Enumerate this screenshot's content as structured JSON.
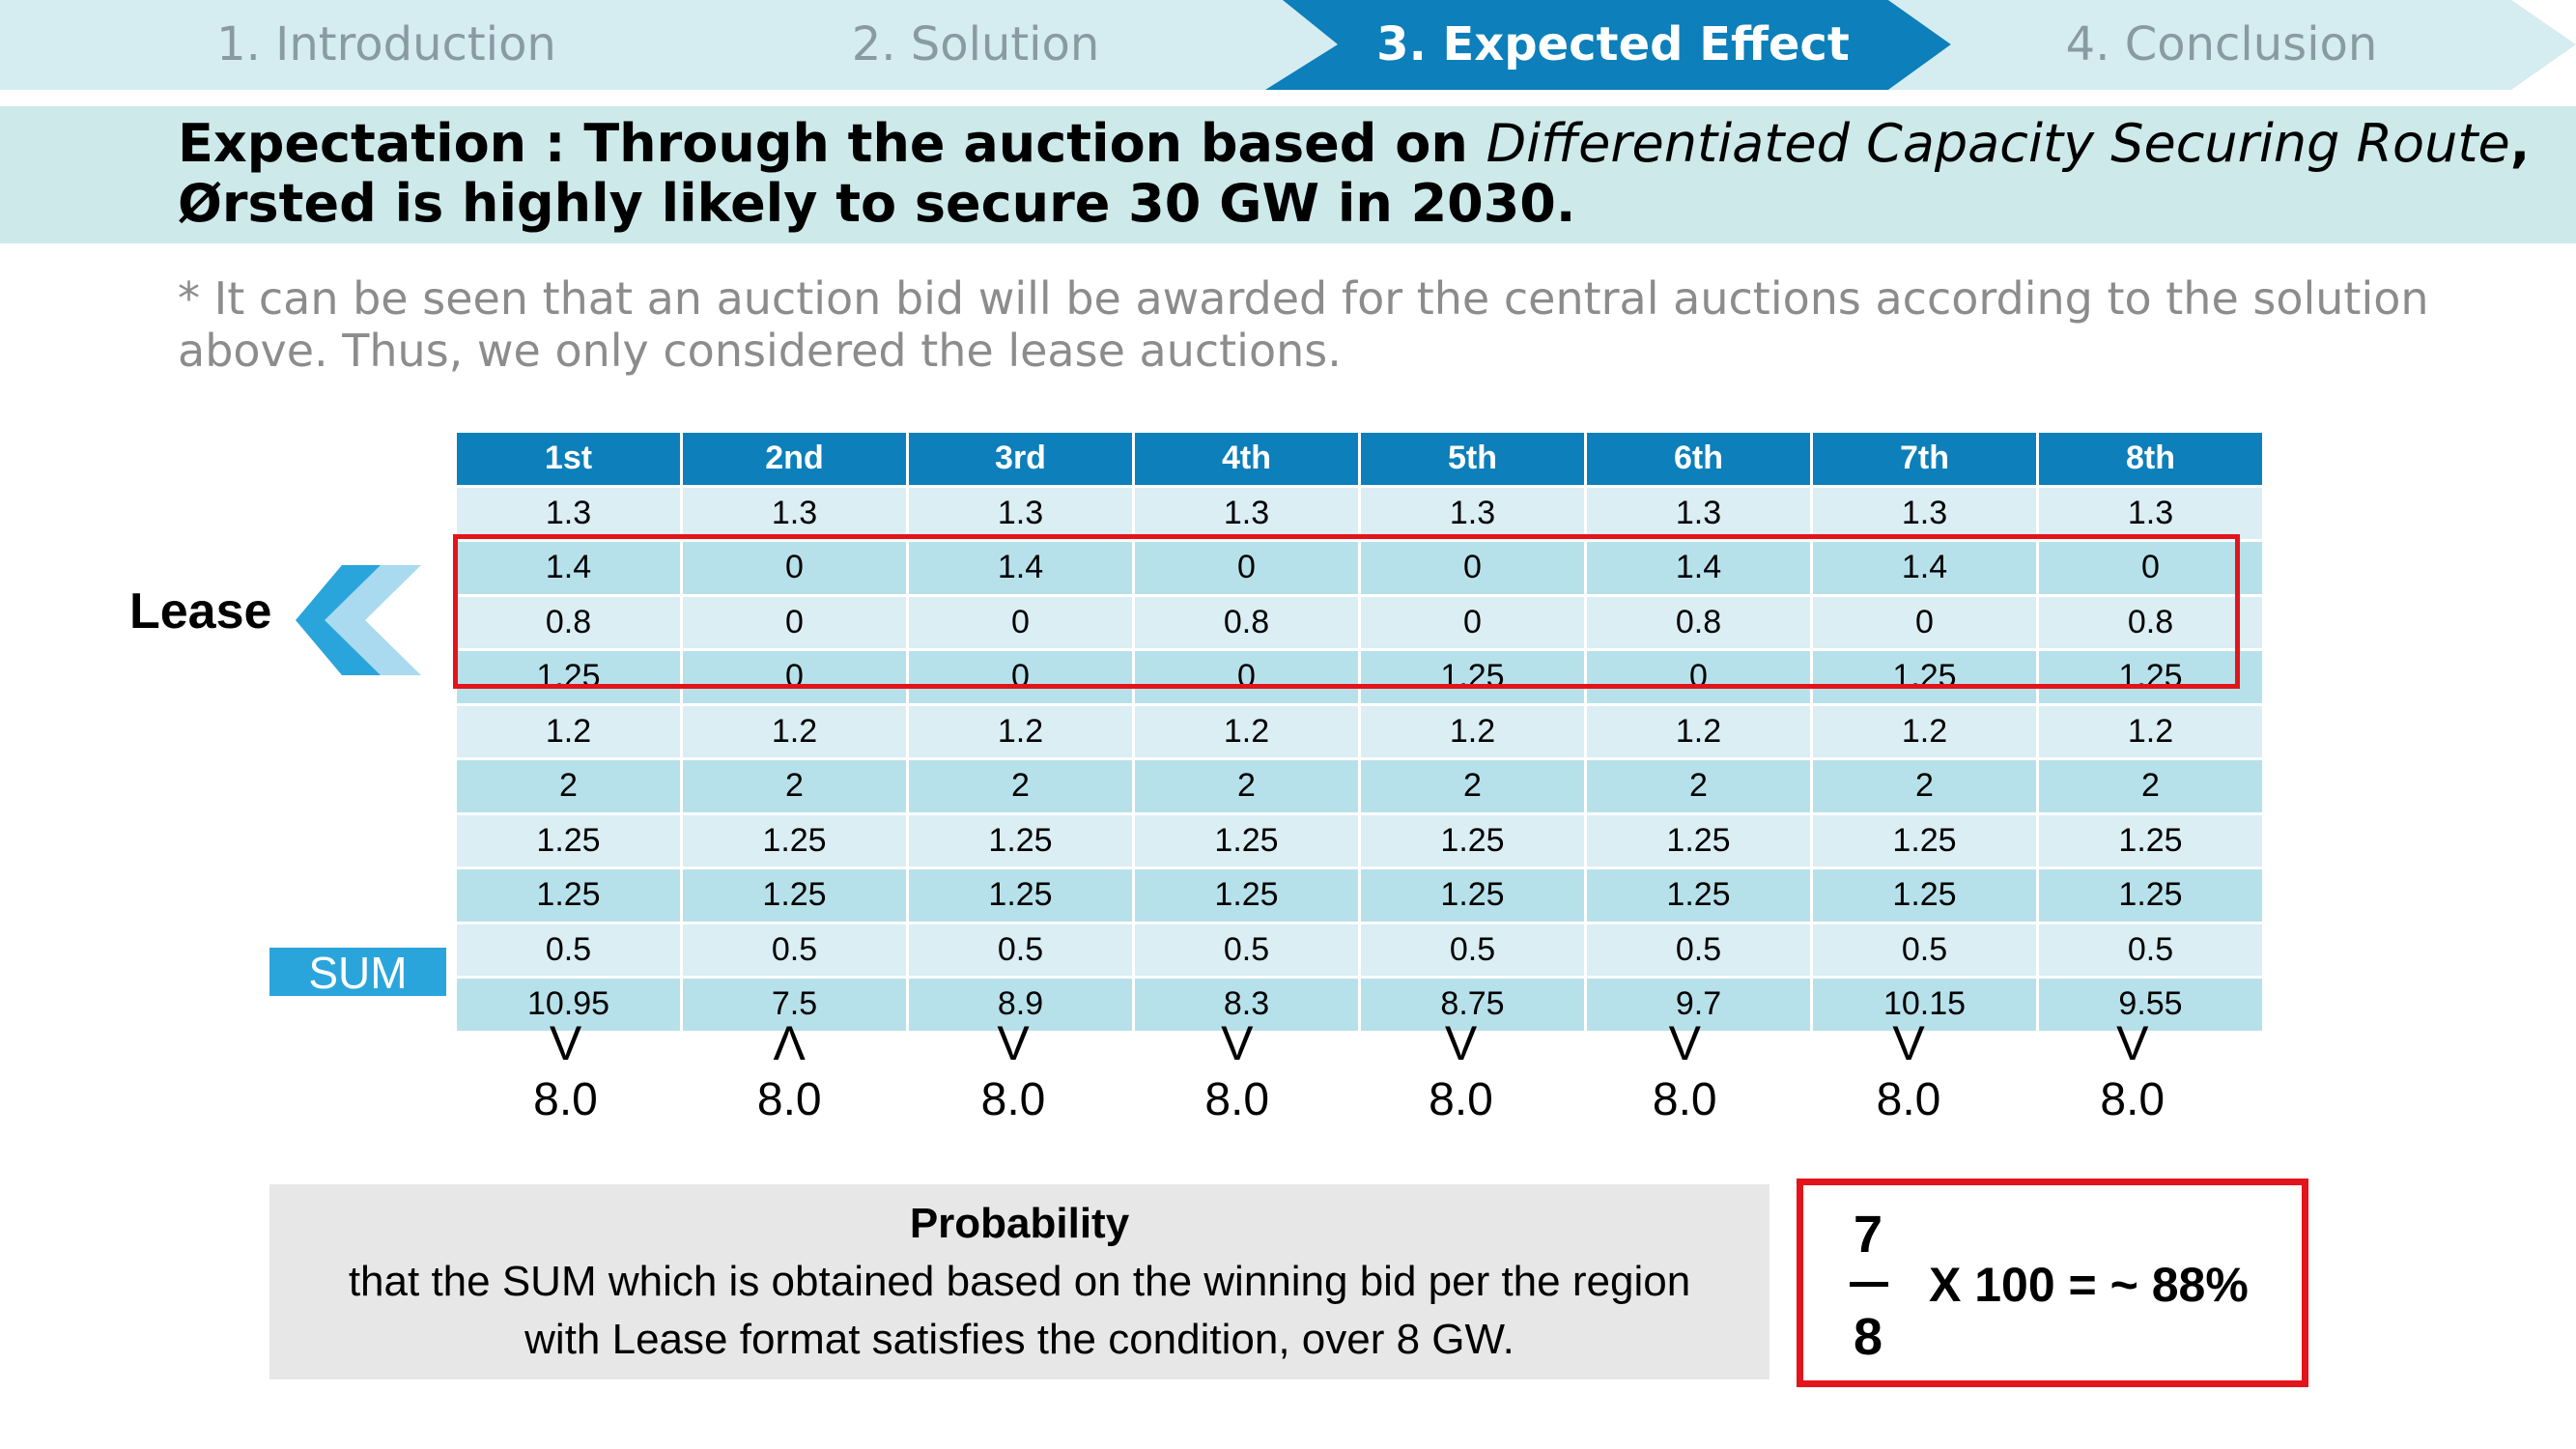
{
  "nav": {
    "steps": [
      {
        "label": "1. Introduction",
        "active": false
      },
      {
        "label": "2. Solution",
        "active": false
      },
      {
        "label": "3. Expected Effect",
        "active": true
      },
      {
        "label": "4. Conclusion",
        "active": false
      }
    ],
    "colors": {
      "inactive_fill": "#d5ecf1",
      "active_fill": "#0d7fba"
    }
  },
  "headline": {
    "prefix": "Expectation : Through the auction based on ",
    "italic": "Differentiated Capacity Securing Route",
    "suffix": ",",
    "line2": "Ørsted is highly likely to secure 30 GW in 2030."
  },
  "note": {
    "line1": "* It can be seen that an auction bid will be awarded for the central auctions according to the solution",
    "line2": "above. Thus, we only considered the lease auctions."
  },
  "table": {
    "headers": [
      "1st",
      "2nd",
      "3rd",
      "4th",
      "5th",
      "6th",
      "7th",
      "8th"
    ],
    "rows": [
      [
        "1.3",
        "1.3",
        "1.3",
        "1.3",
        "1.3",
        "1.3",
        "1.3",
        "1.3"
      ],
      [
        "1.4",
        "0",
        "1.4",
        "0",
        "0",
        "1.4",
        "1.4",
        "0"
      ],
      [
        "0.8",
        "0",
        "0",
        "0.8",
        "0",
        "0.8",
        "0",
        "0.8"
      ],
      [
        "1.25",
        "0",
        "0",
        "0",
        "1.25",
        "0",
        "1.25",
        "1.25"
      ],
      [
        "1.2",
        "1.2",
        "1.2",
        "1.2",
        "1.2",
        "1.2",
        "1.2",
        "1.2"
      ],
      [
        "2",
        "2",
        "2",
        "2",
        "2",
        "2",
        "2",
        "2"
      ],
      [
        "1.25",
        "1.25",
        "1.25",
        "1.25",
        "1.25",
        "1.25",
        "1.25",
        "1.25"
      ],
      [
        "1.25",
        "1.25",
        "1.25",
        "1.25",
        "1.25",
        "1.25",
        "1.25",
        "1.25"
      ],
      [
        "0.5",
        "0.5",
        "0.5",
        "0.5",
        "0.5",
        "0.5",
        "0.5",
        "0.5"
      ],
      [
        "10.95",
        "7.5",
        "8.9",
        "8.3",
        "8.75",
        "9.7",
        "10.15",
        "9.55"
      ]
    ],
    "highlight_color": "#e3141b"
  },
  "lease_label": "Lease",
  "sum_label": "SUM",
  "comparisons": [
    {
      "symbol": "V",
      "value": "8.0"
    },
    {
      "symbol": "Λ",
      "value": "8.0"
    },
    {
      "symbol": "V",
      "value": "8.0"
    },
    {
      "symbol": "V",
      "value": "8.0"
    },
    {
      "symbol": "V",
      "value": "8.0"
    },
    {
      "symbol": "V",
      "value": "8.0"
    },
    {
      "symbol": "V",
      "value": "8.0"
    },
    {
      "symbol": "V",
      "value": "8.0"
    }
  ],
  "probability": {
    "title": "Probability",
    "line1": "that the SUM which is obtained based on the winning bid per the region",
    "line2": "with Lease format satisfies the condition, over 8 GW."
  },
  "formula": {
    "numerator": "7",
    "denominator": "8",
    "rest": "X 100 = ~ 88%"
  }
}
